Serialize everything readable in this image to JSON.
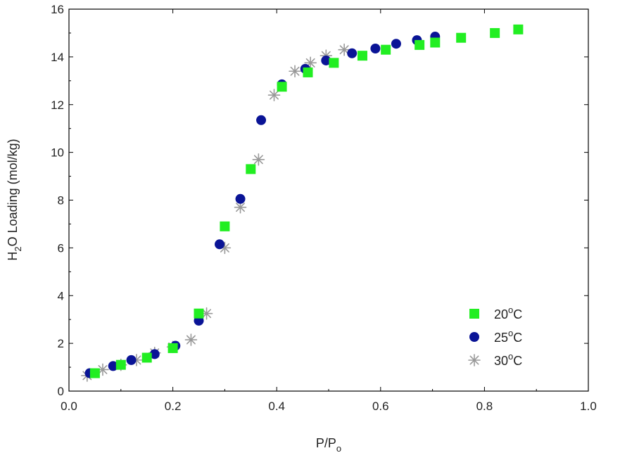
{
  "chart_data": {
    "type": "scatter",
    "xlabel": {
      "main": "P/P",
      "sub": "o"
    },
    "ylabel": {
      "prefix": "H",
      "sub": "2",
      "suffix": "O Loading (mol/kg)"
    },
    "xlim": [
      0.0,
      1.0
    ],
    "ylim": [
      0,
      16
    ],
    "xticks": [
      "0.0",
      "0.2",
      "0.4",
      "0.6",
      "0.8",
      "1.0"
    ],
    "yticks": [
      "0",
      "2",
      "4",
      "6",
      "8",
      "10",
      "12",
      "14",
      "16"
    ],
    "grid": false,
    "legend_position": "bottom-right",
    "series": [
      {
        "name": "20°C",
        "name_parts": {
          "value": "20",
          "sup": "o",
          "unit": "C"
        },
        "marker": "square",
        "color": "#22ee22",
        "points": [
          [
            0.05,
            0.75
          ],
          [
            0.1,
            1.1
          ],
          [
            0.15,
            1.4
          ],
          [
            0.2,
            1.8
          ],
          [
            0.25,
            3.25
          ],
          [
            0.3,
            6.9
          ],
          [
            0.35,
            9.3
          ],
          [
            0.41,
            12.75
          ],
          [
            0.46,
            13.35
          ],
          [
            0.51,
            13.75
          ],
          [
            0.565,
            14.05
          ],
          [
            0.61,
            14.3
          ],
          [
            0.675,
            14.5
          ],
          [
            0.705,
            14.6
          ],
          [
            0.755,
            14.8
          ],
          [
            0.82,
            15.0
          ],
          [
            0.865,
            15.15
          ]
        ]
      },
      {
        "name": "25°C",
        "name_parts": {
          "value": "25",
          "sup": "o",
          "unit": "C"
        },
        "marker": "circle",
        "color": "#0a1496",
        "points": [
          [
            0.04,
            0.75
          ],
          [
            0.085,
            1.05
          ],
          [
            0.12,
            1.3
          ],
          [
            0.165,
            1.55
          ],
          [
            0.205,
            1.9
          ],
          [
            0.25,
            2.95
          ],
          [
            0.29,
            6.15
          ],
          [
            0.33,
            8.05
          ],
          [
            0.37,
            11.35
          ],
          [
            0.41,
            12.85
          ],
          [
            0.455,
            13.5
          ],
          [
            0.495,
            13.85
          ],
          [
            0.545,
            14.15
          ],
          [
            0.59,
            14.35
          ],
          [
            0.63,
            14.55
          ],
          [
            0.67,
            14.7
          ],
          [
            0.705,
            14.85
          ]
        ]
      },
      {
        "name": "30°C",
        "name_parts": {
          "value": "30",
          "sup": "o",
          "unit": "C"
        },
        "marker": "asterisk",
        "color": "#999999",
        "points": [
          [
            0.035,
            0.65
          ],
          [
            0.065,
            0.9
          ],
          [
            0.1,
            1.1
          ],
          [
            0.13,
            1.3
          ],
          [
            0.165,
            1.6
          ],
          [
            0.2,
            1.85
          ],
          [
            0.235,
            2.15
          ],
          [
            0.265,
            3.25
          ],
          [
            0.3,
            6.0
          ],
          [
            0.33,
            7.7
          ],
          [
            0.365,
            9.7
          ],
          [
            0.395,
            12.4
          ],
          [
            0.435,
            13.4
          ],
          [
            0.465,
            13.75
          ],
          [
            0.495,
            14.05
          ],
          [
            0.53,
            14.3
          ]
        ]
      }
    ]
  }
}
